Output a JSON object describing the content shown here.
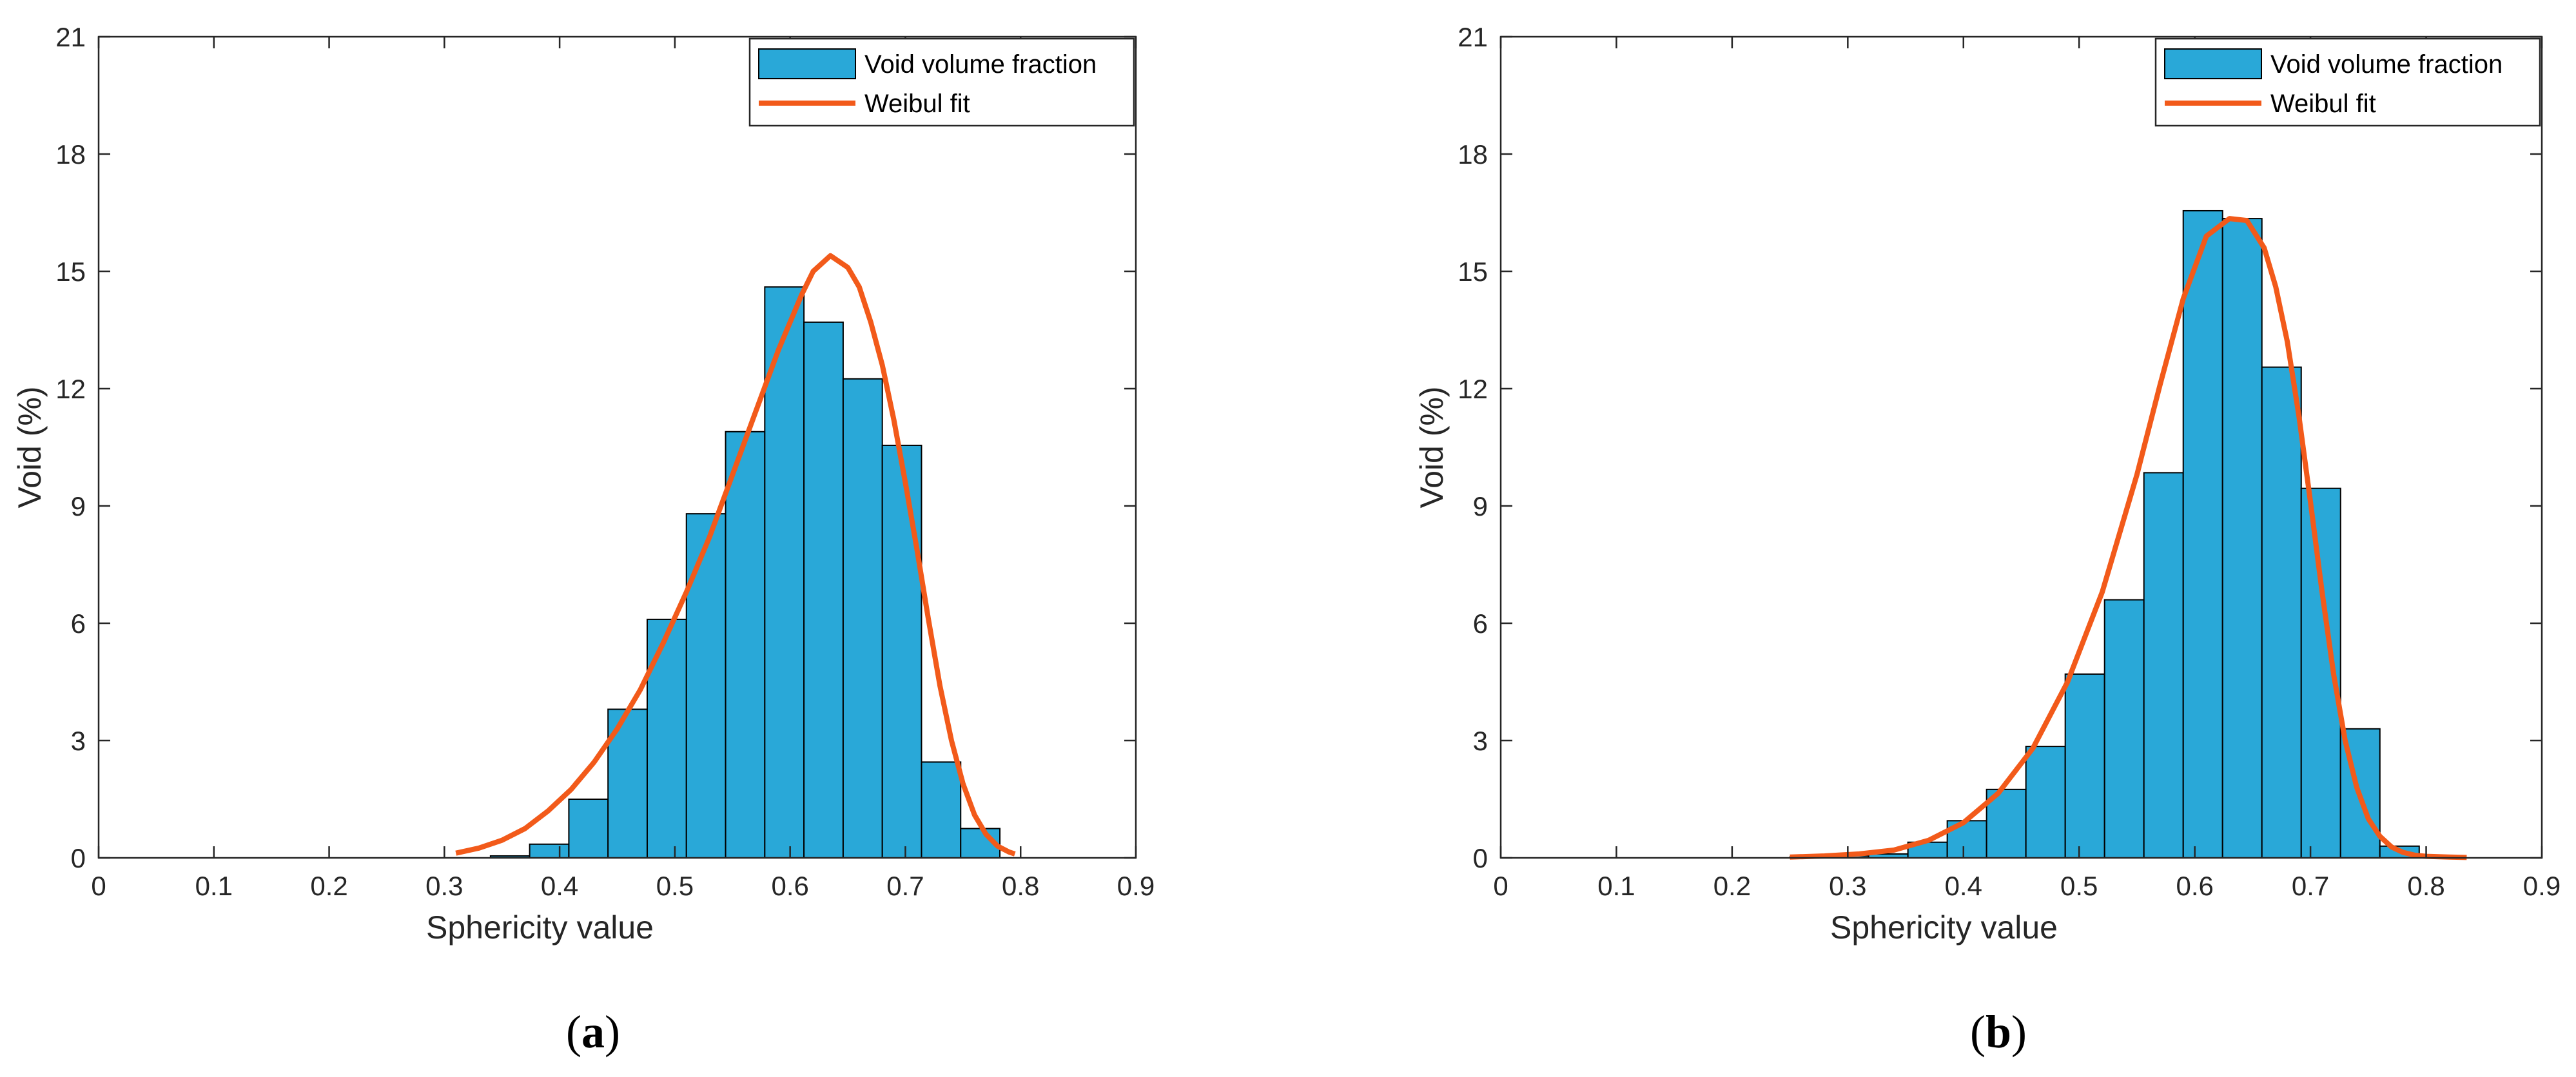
{
  "chart_data": [
    {
      "type": "bar",
      "caption": {
        "open": "(",
        "letter": "a",
        "close": ")"
      },
      "xlabel": "Sphericity value",
      "ylabel": "Void (%)",
      "xlim": [
        0,
        0.9
      ],
      "ylim": [
        0,
        21
      ],
      "xticks": [
        "0",
        "0.1",
        "0.2",
        "0.3",
        "0.4",
        "0.5",
        "0.6",
        "0.7",
        "0.8",
        "0.9"
      ],
      "yticks": [
        "0",
        "3",
        "6",
        "9",
        "12",
        "15",
        "18",
        "21"
      ],
      "grid": false,
      "legend_position": "top-right",
      "legend": [
        "Void volume fraction",
        "Weibul fit"
      ],
      "bar_color": "#29a8d8",
      "fit_color": "#f25a1a",
      "bins": [
        {
          "x0": 0.34,
          "x1": 0.374,
          "value": 0.05
        },
        {
          "x0": 0.374,
          "x1": 0.408,
          "value": 0.35
        },
        {
          "x0": 0.408,
          "x1": 0.442,
          "value": 1.5
        },
        {
          "x0": 0.442,
          "x1": 0.476,
          "value": 3.8
        },
        {
          "x0": 0.476,
          "x1": 0.51,
          "value": 6.1
        },
        {
          "x0": 0.51,
          "x1": 0.544,
          "value": 8.8
        },
        {
          "x0": 0.544,
          "x1": 0.578,
          "value": 10.9
        },
        {
          "x0": 0.578,
          "x1": 0.612,
          "value": 14.6
        },
        {
          "x0": 0.612,
          "x1": 0.646,
          "value": 13.7
        },
        {
          "x0": 0.646,
          "x1": 0.68,
          "value": 12.25
        },
        {
          "x0": 0.68,
          "x1": 0.714,
          "value": 10.55
        },
        {
          "x0": 0.714,
          "x1": 0.748,
          "value": 2.45
        },
        {
          "x0": 0.748,
          "x1": 0.782,
          "value": 0.75
        }
      ],
      "fit": {
        "x": [
          0.31,
          0.33,
          0.35,
          0.37,
          0.39,
          0.41,
          0.43,
          0.45,
          0.47,
          0.49,
          0.51,
          0.53,
          0.55,
          0.57,
          0.59,
          0.61,
          0.62,
          0.635,
          0.65,
          0.66,
          0.67,
          0.68,
          0.69,
          0.7,
          0.71,
          0.72,
          0.73,
          0.74,
          0.75,
          0.76,
          0.77,
          0.78,
          0.79,
          0.795
        ],
        "y": [
          0.12,
          0.25,
          0.45,
          0.75,
          1.2,
          1.75,
          2.45,
          3.3,
          4.3,
          5.5,
          6.8,
          8.2,
          9.8,
          11.4,
          13.0,
          14.4,
          15.0,
          15.4,
          15.1,
          14.6,
          13.7,
          12.6,
          11.2,
          9.6,
          7.9,
          6.1,
          4.4,
          3.0,
          1.9,
          1.1,
          0.6,
          0.3,
          0.15,
          0.1
        ]
      }
    },
    {
      "type": "bar",
      "caption": {
        "open": "(",
        "letter": "b",
        "close": ")"
      },
      "xlabel": "Sphericity value",
      "ylabel": "Void (%)",
      "xlim": [
        0,
        0.9
      ],
      "ylim": [
        0,
        21
      ],
      "xticks": [
        "0",
        "0.1",
        "0.2",
        "0.3",
        "0.4",
        "0.5",
        "0.6",
        "0.7",
        "0.8",
        "0.9"
      ],
      "yticks": [
        "0",
        "3",
        "6",
        "9",
        "12",
        "15",
        "18",
        "21"
      ],
      "grid": false,
      "legend_position": "top-right",
      "legend": [
        "Void volume fraction",
        "Weibul fit"
      ],
      "bar_color": "#29a8d8",
      "fit_color": "#f25a1a",
      "bins": [
        {
          "x0": 0.25,
          "x1": 0.284,
          "value": 0.02
        },
        {
          "x0": 0.284,
          "x1": 0.318,
          "value": 0.05
        },
        {
          "x0": 0.318,
          "x1": 0.352,
          "value": 0.1
        },
        {
          "x0": 0.352,
          "x1": 0.386,
          "value": 0.4
        },
        {
          "x0": 0.386,
          "x1": 0.42,
          "value": 0.95
        },
        {
          "x0": 0.42,
          "x1": 0.454,
          "value": 1.75
        },
        {
          "x0": 0.454,
          "x1": 0.488,
          "value": 2.85
        },
        {
          "x0": 0.488,
          "x1": 0.522,
          "value": 4.7
        },
        {
          "x0": 0.522,
          "x1": 0.556,
          "value": 6.6
        },
        {
          "x0": 0.556,
          "x1": 0.59,
          "value": 9.85
        },
        {
          "x0": 0.59,
          "x1": 0.624,
          "value": 16.55
        },
        {
          "x0": 0.624,
          "x1": 0.658,
          "value": 16.35
        },
        {
          "x0": 0.658,
          "x1": 0.692,
          "value": 12.55
        },
        {
          "x0": 0.692,
          "x1": 0.726,
          "value": 9.45
        },
        {
          "x0": 0.726,
          "x1": 0.76,
          "value": 3.3
        },
        {
          "x0": 0.76,
          "x1": 0.794,
          "value": 0.3
        },
        {
          "x0": 0.794,
          "x1": 0.828,
          "value": 0.05
        }
      ],
      "fit": {
        "x": [
          0.25,
          0.28,
          0.31,
          0.34,
          0.37,
          0.4,
          0.43,
          0.46,
          0.49,
          0.52,
          0.55,
          0.57,
          0.59,
          0.61,
          0.63,
          0.645,
          0.66,
          0.67,
          0.68,
          0.69,
          0.7,
          0.71,
          0.72,
          0.73,
          0.74,
          0.75,
          0.76,
          0.77,
          0.78,
          0.79,
          0.8,
          0.82,
          0.835
        ],
        "y": [
          0.02,
          0.05,
          0.1,
          0.2,
          0.45,
          0.9,
          1.65,
          2.8,
          4.5,
          6.8,
          9.8,
          12.1,
          14.3,
          15.9,
          16.35,
          16.3,
          15.6,
          14.6,
          13.2,
          11.3,
          9.1,
          6.8,
          4.7,
          3.0,
          1.8,
          1.0,
          0.55,
          0.28,
          0.14,
          0.07,
          0.04,
          0.02,
          0.01
        ]
      }
    }
  ]
}
